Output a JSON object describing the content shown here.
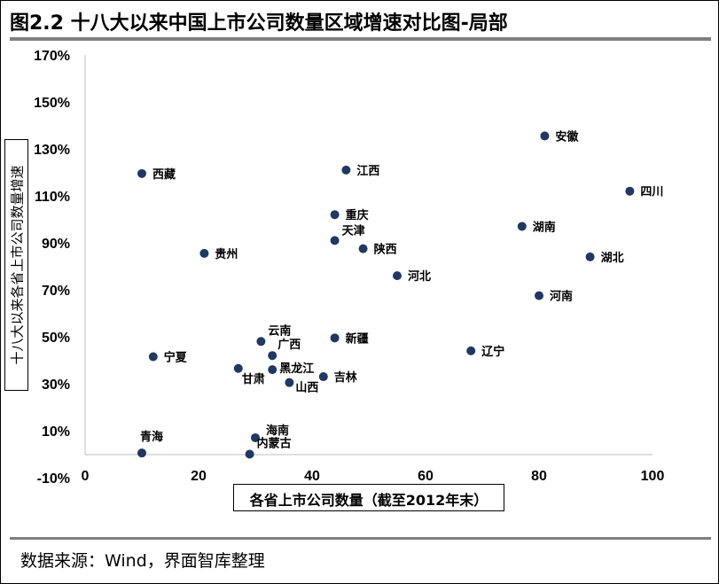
{
  "header": {
    "title": "图2.2 十八大以来中国上市公司数量区域增速对比图-局部"
  },
  "footer": {
    "source": "数据来源：Wind，界面智库整理"
  },
  "chart_data": {
    "type": "scatter",
    "title": "图2.2 十八大以来中国上市公司数量区域增速对比图-局部",
    "xlabel": "各省上市公司数量（截至2012年末）",
    "ylabel": "十八大以来各省上市公司数量增速",
    "xlim": [
      0,
      100
    ],
    "ylim": [
      -10,
      170
    ],
    "x_ticks": [
      0,
      20,
      40,
      60,
      80,
      100
    ],
    "x_tick_labels": [
      "0",
      "20",
      "40",
      "60",
      "80",
      "100"
    ],
    "y_ticks": [
      -10,
      10,
      30,
      50,
      70,
      90,
      110,
      130,
      150,
      170
    ],
    "y_tick_labels": [
      "-10%",
      "10%",
      "30%",
      "50%",
      "70%",
      "90%",
      "110%",
      "130%",
      "150%",
      "170%"
    ],
    "grid": false,
    "marker_color": "#1f3864",
    "points": [
      {
        "label": "安徽",
        "x": 81,
        "y": 135.5
      },
      {
        "label": "西藏",
        "x": 10,
        "y": 119.5
      },
      {
        "label": "江西",
        "x": 46,
        "y": 121
      },
      {
        "label": "四川",
        "x": 96,
        "y": 112
      },
      {
        "label": "重庆",
        "x": 44,
        "y": 102
      },
      {
        "label": "湖南",
        "x": 77,
        "y": 97
      },
      {
        "label": "天津",
        "x": 44,
        "y": 91
      },
      {
        "label": "陕西",
        "x": 49,
        "y": 87.5
      },
      {
        "label": "贵州",
        "x": 21,
        "y": 85.5
      },
      {
        "label": "湖北",
        "x": 89,
        "y": 84
      },
      {
        "label": "河北",
        "x": 55,
        "y": 76
      },
      {
        "label": "河南",
        "x": 80,
        "y": 67.5
      },
      {
        "label": "云南",
        "x": 31,
        "y": 48
      },
      {
        "label": "新疆",
        "x": 44,
        "y": 49.5
      },
      {
        "label": "辽宁",
        "x": 68,
        "y": 44
      },
      {
        "label": "广西",
        "x": 33,
        "y": 42
      },
      {
        "label": "宁夏",
        "x": 12,
        "y": 41.5
      },
      {
        "label": "黑龙江",
        "x": 33,
        "y": 36
      },
      {
        "label": "甘肃",
        "x": 27,
        "y": 36.5
      },
      {
        "label": "吉林",
        "x": 42,
        "y": 33
      },
      {
        "label": "山西",
        "x": 36,
        "y": 30.5
      },
      {
        "label": "海南",
        "x": 30,
        "y": 7
      },
      {
        "label": "青海",
        "x": 10,
        "y": 0.5
      },
      {
        "label": "内蒙古",
        "x": 29,
        "y": 0
      }
    ]
  }
}
